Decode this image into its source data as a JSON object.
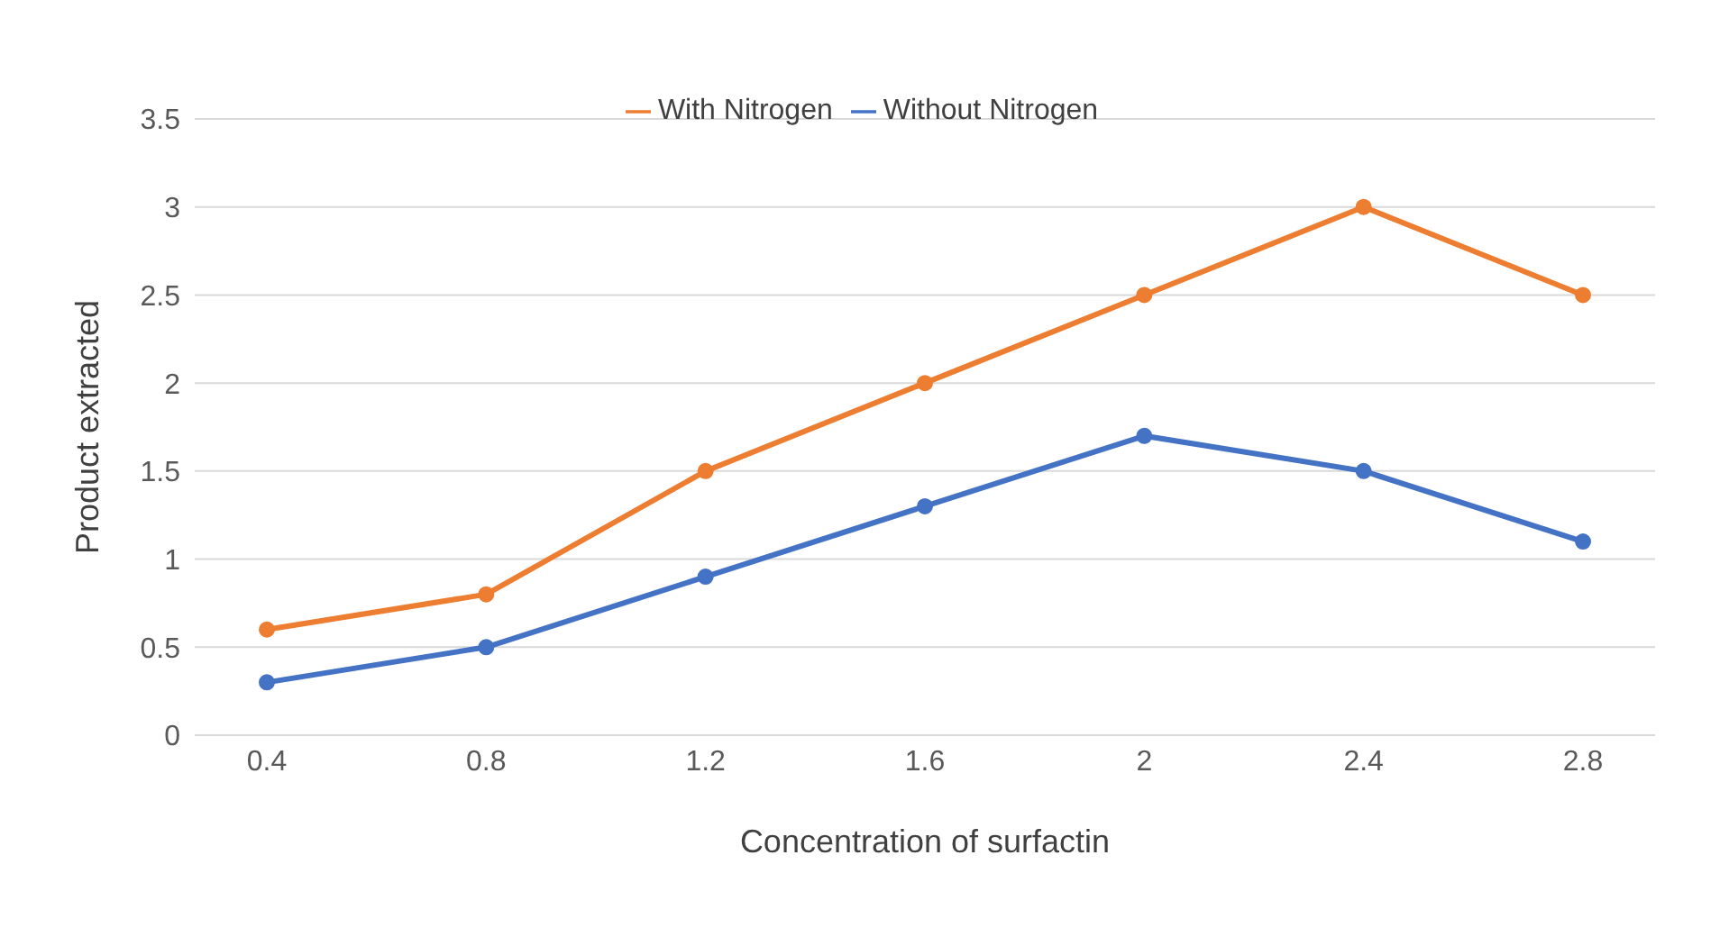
{
  "chart_data": {
    "type": "line",
    "xlabel": "Concentration of surfactin",
    "ylabel": "Product extracted",
    "categories": [
      "0.4",
      "0.8",
      "1.2",
      "1.6",
      "2",
      "2.4",
      "2.8"
    ],
    "series": [
      {
        "name": "Without Nitrogen",
        "color": "#4472c4",
        "values": [
          0.3,
          0.5,
          0.9,
          1.3,
          1.7,
          1.5,
          1.1
        ]
      },
      {
        "name": "With Nitrogen",
        "color": "#ed7d31",
        "values": [
          0.6,
          0.8,
          1.5,
          2.0,
          2.5,
          3.0,
          2.5
        ]
      }
    ],
    "ylim": [
      0,
      3.5
    ],
    "yticks": [
      0,
      0.5,
      1,
      1.5,
      2,
      2.5,
      3,
      3.5
    ],
    "grid": "y",
    "legend": "top",
    "marker": "circle",
    "line_style": "solid"
  }
}
